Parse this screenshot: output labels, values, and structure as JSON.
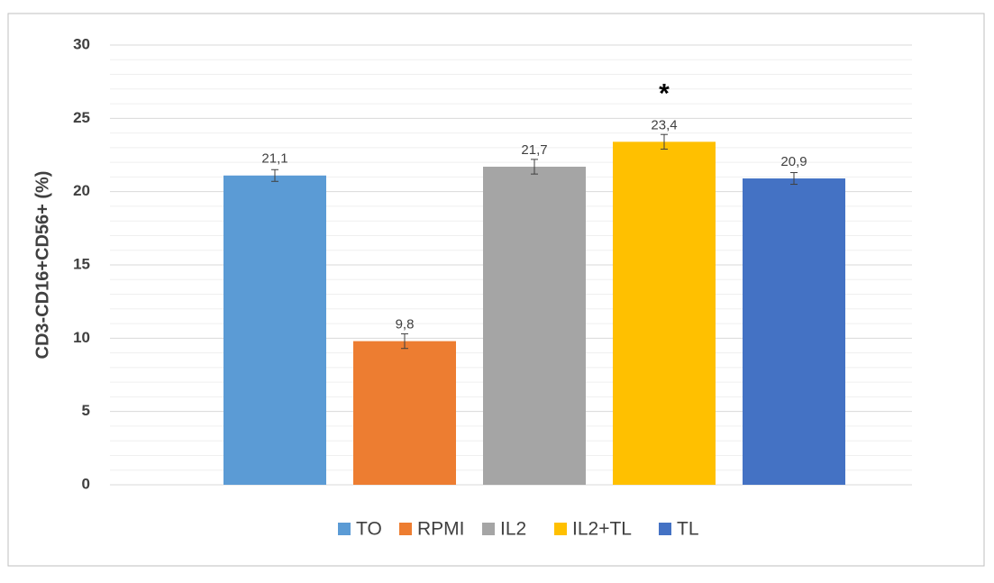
{
  "chart_data": {
    "type": "bar",
    "ylabel": "CD3-CD16+CD56+ (%)",
    "ylim": [
      0,
      30
    ],
    "yticks": [
      0,
      5,
      10,
      15,
      20,
      25,
      30
    ],
    "grid": true,
    "minor_grid": true,
    "legend": "bottom",
    "series": [
      {
        "name": "TO",
        "color": "#5b9bd5",
        "values": [
          21.1
        ],
        "value_labels": [
          "21,1"
        ],
        "errors": [
          0.4
        ]
      },
      {
        "name": "RPMI",
        "color": "#ed7d31",
        "values": [
          9.8
        ],
        "value_labels": [
          "9,8"
        ],
        "errors": [
          0.5
        ]
      },
      {
        "name": "IL2",
        "color": "#a5a5a5",
        "values": [
          21.7
        ],
        "value_labels": [
          "21,7"
        ],
        "errors": [
          0.5
        ]
      },
      {
        "name": "IL2+TL",
        "color": "#ffc000",
        "values": [
          23.4
        ],
        "value_labels": [
          "23,4"
        ],
        "errors": [
          0.5
        ]
      },
      {
        "name": "TL",
        "color": "#4472c4",
        "values": [
          20.9
        ],
        "value_labels": [
          "20,9"
        ],
        "errors": [
          0.4
        ]
      }
    ],
    "annotations": [
      {
        "text": "*",
        "series": "IL2+TL"
      }
    ]
  }
}
